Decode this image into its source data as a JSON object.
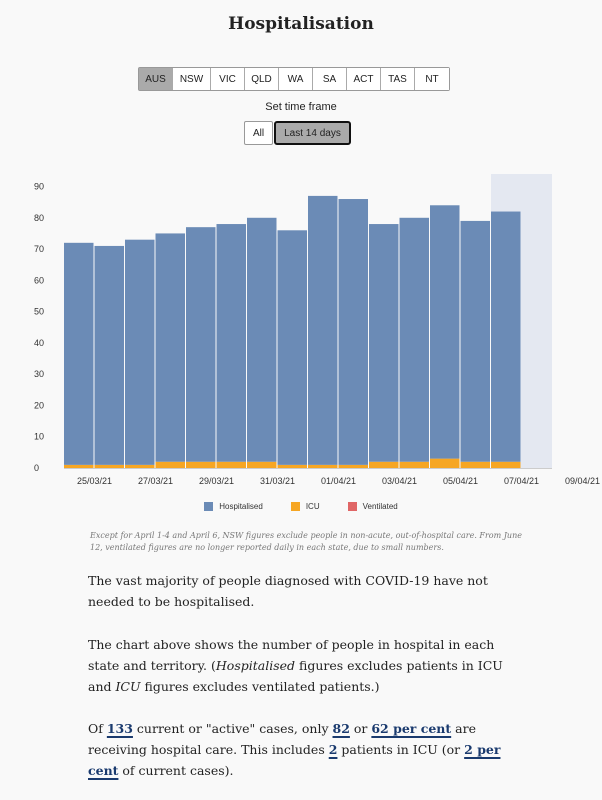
{
  "title": "Hospitalisation",
  "states": [
    "AUS",
    "NSW",
    "VIC",
    "QLD",
    "WA",
    "SA",
    "ACT",
    "TAS",
    "NT"
  ],
  "timeframe": {
    "label": "Set time frame",
    "all": "All",
    "last14": "Last 14 days"
  },
  "colors": {
    "hospitalised": "#6b8bb6",
    "icu": "#f6a623",
    "ventilated": "#e06666",
    "highlight": "#e4e8f1"
  },
  "chart_data": {
    "type": "bar",
    "stacked": true,
    "categories": [
      "24/03/21",
      "25/03/21",
      "26/03/21",
      "27/03/21",
      "28/03/21",
      "29/03/21",
      "30/03/21",
      "31/03/21",
      "01/04/21",
      "02/04/21",
      "03/04/21",
      "04/04/21",
      "05/04/21",
      "06/04/21",
      "07/04/21",
      "08/04/21"
    ],
    "series": [
      {
        "name": "Hospitalised",
        "values": [
          71,
          70,
          72,
          73,
          75,
          76,
          78,
          75,
          86,
          85,
          76,
          78,
          81,
          77,
          80,
          null
        ]
      },
      {
        "name": "ICU",
        "values": [
          1,
          1,
          1,
          2,
          2,
          2,
          2,
          1,
          1,
          1,
          2,
          2,
          3,
          2,
          2,
          null
        ]
      },
      {
        "name": "Ventilated",
        "values": [
          0,
          0,
          0,
          0,
          0,
          0,
          0,
          0,
          0,
          0,
          0,
          0,
          0,
          0,
          0,
          null
        ]
      }
    ],
    "highlight_range": [
      "07/04/21",
      "08/04/21"
    ],
    "highlight_ymax": 94,
    "ylim": [
      0,
      94
    ],
    "yticks": [
      0,
      10,
      20,
      30,
      40,
      50,
      60,
      70,
      80,
      90
    ],
    "xtick_labels": [
      "25/03/21",
      "27/03/21",
      "29/03/21",
      "31/03/21",
      "01/04/21",
      "03/04/21",
      "05/04/21",
      "07/04/21",
      "09/04/21"
    ],
    "legend": [
      "Hospitalised",
      "ICU",
      "Ventilated"
    ],
    "grid": false
  },
  "note": "Except for April 1-4 and April 6, NSW figures exclude people in non-acute, out-of-hospital care. From June 12, ventilated figures are no longer reported daily in each state, due to small numbers.",
  "paragraphs": {
    "p1": "The vast majority of people diagnosed with COVID-19 have not needed to be hospitalised.",
    "p2a": "The chart above shows the number of people in hospital in each state and territory. (",
    "p2b": "Hospitalised",
    "p2c": " figures excludes patients in ICU and ",
    "p2d": "ICU",
    "p2e": " figures excludes ventilated patients.)",
    "p3a": "Of ",
    "p3b": "133",
    "p3c": " current or \"active\" cases, only ",
    "p3d": "82",
    "p3e": " or ",
    "p3f": "62 per cent",
    "p3g": " are receiving hospital care. This includes ",
    "p3h": "2",
    "p3i": " patients in ICU (or ",
    "p3j": "2 per cent",
    "p3k": " of current cases)."
  }
}
